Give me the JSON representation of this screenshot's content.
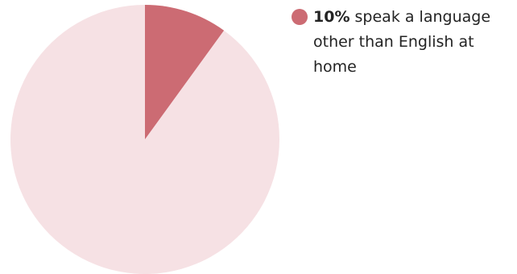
{
  "chart_data": {
    "type": "pie",
    "title": "",
    "slices": [
      {
        "label": "speak a language other than English at home",
        "value": 10,
        "color": "#cc6b73"
      },
      {
        "label": "",
        "value": 90,
        "color": "#f6e1e4"
      }
    ],
    "legend": {
      "placement": "top-right",
      "value_text": "10%",
      "text": "speak a language other than English at home"
    }
  }
}
